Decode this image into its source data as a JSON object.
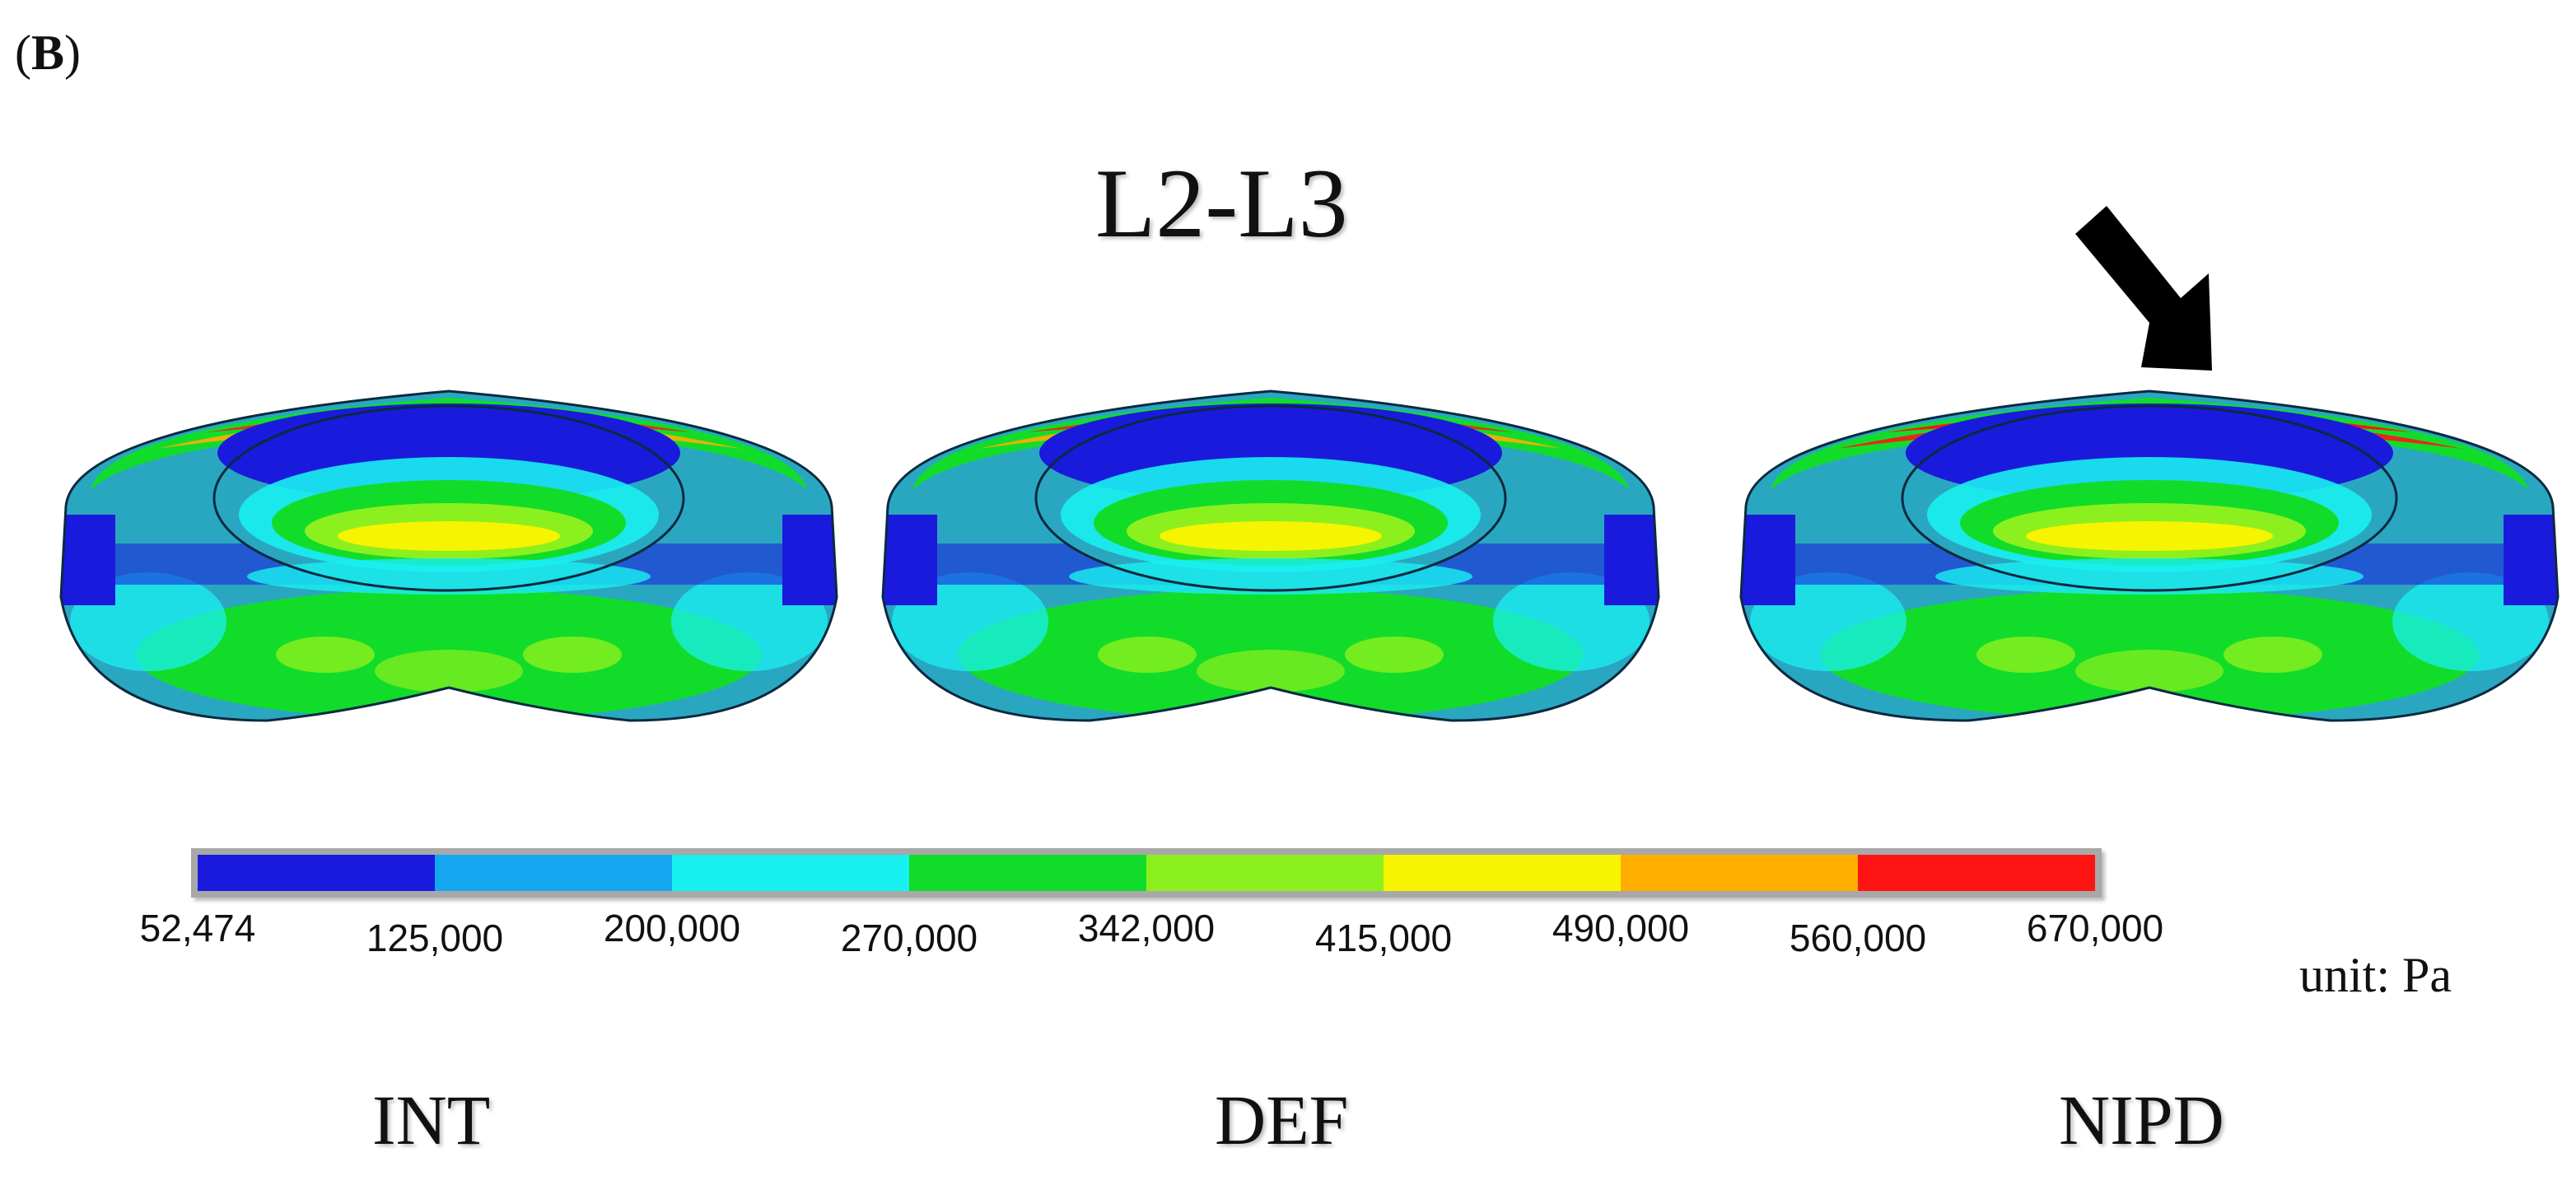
{
  "panel_label": {
    "open": "(",
    "letter": "B",
    "close": ")"
  },
  "title": "L2-L3",
  "unit": "unit: Pa",
  "models": [
    {
      "label": "INT"
    },
    {
      "label": "DEF"
    },
    {
      "label": "NIPD"
    }
  ],
  "legend": {
    "ticks": [
      "52,474",
      "125,000",
      "200,000",
      "270,000",
      "342,000",
      "415,000",
      "490,000",
      "560,000",
      "670,000"
    ],
    "colors": [
      "#1a1adc",
      "#15a6f0",
      "#19f0f0",
      "#12dc2a",
      "#8cf01e",
      "#f6f400",
      "#ffae00",
      "#ff1414"
    ]
  },
  "annotation": {
    "arrow_target": "NIPD"
  }
}
